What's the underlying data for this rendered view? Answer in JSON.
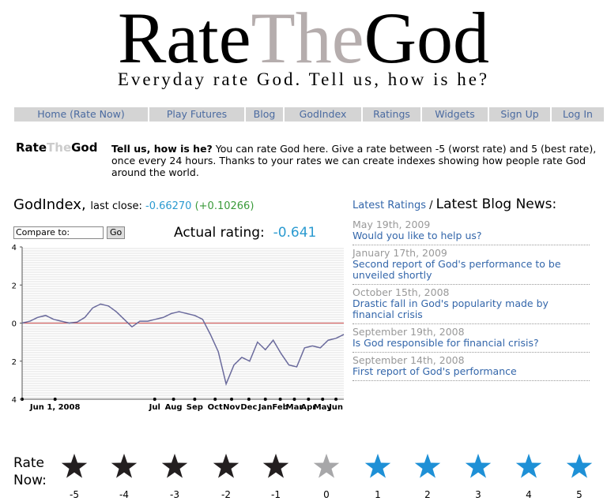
{
  "header": {
    "logo": [
      "Rate",
      "The",
      "God"
    ],
    "tagline": "Everyday rate God. Tell us, how is he?"
  },
  "nav": [
    "Home (Rate Now)",
    "Play Futures",
    "Blog",
    "GodIndex",
    "Ratings",
    "Widgets",
    "Sign Up",
    "Log In"
  ],
  "intro": {
    "logo": [
      "Rate",
      "The",
      "God"
    ],
    "lead": "Tell us, how is he?",
    "text": "You can rate God here. Give a rate between -5 (worst rate) and 5 (best rate), once every 24 hours. Thanks to your rates we can create indexes showing how people rate God around the world."
  },
  "godindex": {
    "title": "GodIndex,",
    "close_label": "last close:",
    "close": "-0.66270",
    "change": "(+0.10266)",
    "compare": "Compare to:",
    "go": "Go",
    "actual_label": "Actual rating:",
    "actual": "-0.641"
  },
  "chart_data": {
    "type": "line",
    "color": "#6a6a9c",
    "zero_line_color": "#d05050",
    "x": [
      0,
      1,
      2,
      3,
      4,
      5,
      6,
      7,
      8,
      9,
      10,
      11,
      12,
      13,
      14,
      15,
      16,
      17,
      18,
      19,
      20,
      21,
      22,
      23,
      24,
      25,
      26,
      27,
      28,
      29,
      30,
      31,
      32,
      33,
      34,
      35,
      36,
      37,
      38,
      39,
      40,
      41
    ],
    "values": [
      0,
      0.1,
      0.3,
      0.4,
      0.2,
      0.1,
      0,
      0.05,
      0.3,
      0.8,
      1,
      0.9,
      0.6,
      0.2,
      -0.2,
      0.1,
      0.1,
      0.2,
      0.3,
      0.5,
      0.6,
      0.5,
      0.4,
      0.2,
      -0.6,
      -1.5,
      -3.2,
      -2.2,
      -1.8,
      -2,
      -1,
      -1.4,
      -0.9,
      -1.6,
      -2.2,
      -2.3,
      -1.3,
      -1.2,
      -1.3,
      -0.9,
      -0.8,
      -0.6
    ],
    "xlim": [
      0,
      41
    ],
    "xticks": [
      {
        "value": 4.2,
        "label": "Jun 1, 2008"
      },
      {
        "value": 16.9,
        "label": "Jul"
      },
      {
        "value": 19.3,
        "label": "Aug"
      },
      {
        "value": 22,
        "label": "Sep"
      },
      {
        "value": 24.6,
        "label": "Oct"
      },
      {
        "value": 26.7,
        "label": "Nov"
      },
      {
        "value": 28.9,
        "label": "Dec"
      },
      {
        "value": 31,
        "label": "Jan"
      },
      {
        "value": 32.9,
        "label": "Feb"
      },
      {
        "value": 34.7,
        "label": "Mar"
      },
      {
        "value": 36.5,
        "label": "Apr"
      },
      {
        "value": 38.3,
        "label": "May"
      },
      {
        "value": 40,
        "label": "Jun"
      }
    ],
    "ylim": [
      -4,
      4
    ],
    "yticks": [
      {
        "value": 4,
        "label": "4"
      },
      {
        "value": 2,
        "label": "2"
      },
      {
        "value": 0,
        "label": "0"
      },
      {
        "value": -2,
        "label": "2"
      },
      {
        "value": -4,
        "label": "4"
      }
    ]
  },
  "news": {
    "ratings_link": "Latest Ratings",
    "separator": "/",
    "title": "Latest Blog News:",
    "items": [
      {
        "date": "May 19th, 2009",
        "title": "Would you like to help us?"
      },
      {
        "date": "January 17th, 2009",
        "title": "Second report of God's performance to be unveiled shortly"
      },
      {
        "date": "October 15th, 2008",
        "title": "Drastic fall in God's popularity made by financial crisis"
      },
      {
        "date": "September 19th, 2008",
        "title": "Is God responsible for financial crisis?"
      },
      {
        "date": "September 14th, 2008",
        "title": "First report of God's performance"
      }
    ]
  },
  "rate": {
    "label": [
      "Rate",
      "Now:"
    ],
    "stars": [
      {
        "value": -5,
        "color": "#231f20"
      },
      {
        "value": -4,
        "color": "#231f20"
      },
      {
        "value": -3,
        "color": "#231f20"
      },
      {
        "value": -2,
        "color": "#231f20"
      },
      {
        "value": -1,
        "color": "#231f20"
      },
      {
        "value": 0,
        "color": "#a7a7a9"
      },
      {
        "value": 1,
        "color": "#1e90d6"
      },
      {
        "value": 2,
        "color": "#1e90d6"
      },
      {
        "value": 3,
        "color": "#1e90d6"
      },
      {
        "value": 4,
        "color": "#1e90d6"
      },
      {
        "value": 5,
        "color": "#1e90d6"
      }
    ]
  }
}
